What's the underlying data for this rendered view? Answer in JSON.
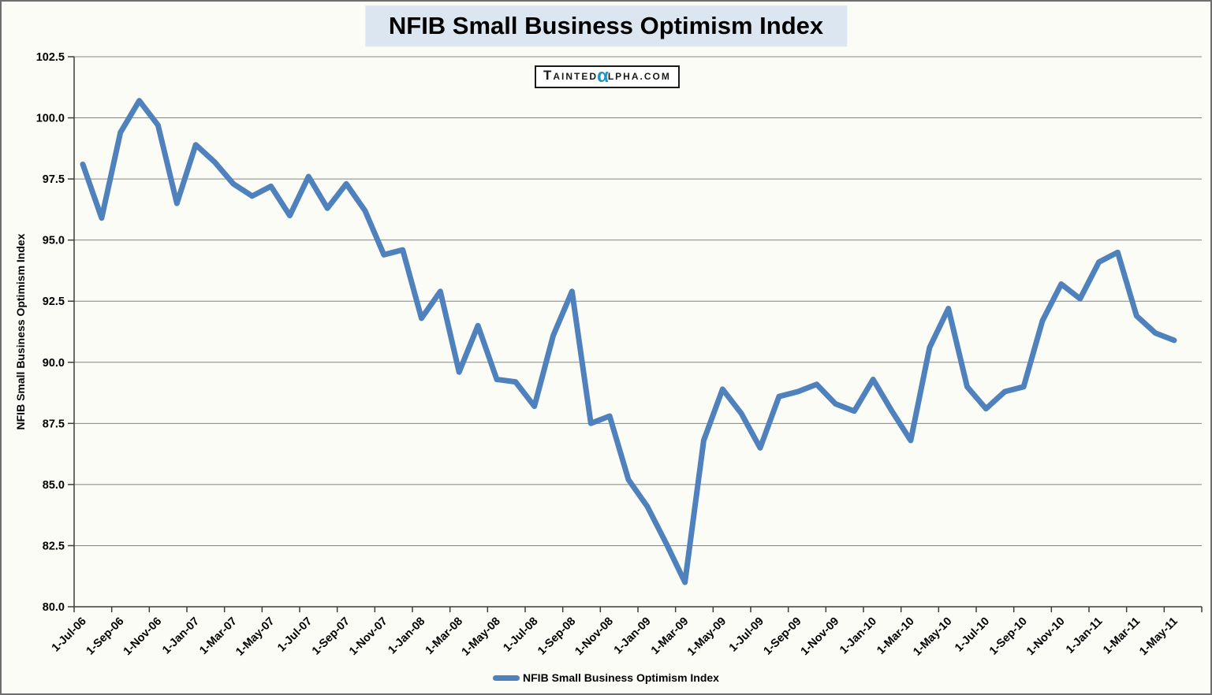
{
  "title": "NFIB Small Business Optimism Index",
  "y_axis_title": "NFIB Small Business Optimism Index",
  "watermark": {
    "t": "T",
    "ainted": "AINTED",
    "alpha": "α",
    "lpha": "LPHA.COM"
  },
  "legend": {
    "label": "NFIB Small Business Optimism Index"
  },
  "colors": {
    "line": "#4f81bd",
    "title_bg": "#dce6f1",
    "grid": "#848484",
    "axis": "#3c3c3c",
    "alpha_blue": "#1e93d1",
    "border": "#6e6e6e",
    "background": "#fcfcf7"
  },
  "chart_data": {
    "type": "line",
    "title": "NFIB Small Business Optimism Index",
    "xlabel": "",
    "ylabel": "NFIB Small Business Optimism Index",
    "ylim": [
      80.0,
      102.5
    ],
    "yticks": [
      80.0,
      82.5,
      85.0,
      87.5,
      90.0,
      92.5,
      95.0,
      97.5,
      100.0,
      102.5
    ],
    "grid": true,
    "legend_position": "bottom",
    "x": [
      "Jul-06",
      "Aug-06",
      "Sep-06",
      "Oct-06",
      "Nov-06",
      "Dec-06",
      "Jan-07",
      "Feb-07",
      "Mar-07",
      "Apr-07",
      "May-07",
      "Jun-07",
      "Jul-07",
      "Aug-07",
      "Sep-07",
      "Oct-07",
      "Nov-07",
      "Dec-07",
      "Jan-08",
      "Feb-08",
      "Mar-08",
      "Apr-08",
      "May-08",
      "Jun-08",
      "Jul-08",
      "Aug-08",
      "Sep-08",
      "Oct-08",
      "Nov-08",
      "Dec-08",
      "Jan-09",
      "Feb-09",
      "Mar-09",
      "Apr-09",
      "May-09",
      "Jun-09",
      "Jul-09",
      "Aug-09",
      "Sep-09",
      "Oct-09",
      "Nov-09",
      "Dec-09",
      "Jan-10",
      "Feb-10",
      "Mar-10",
      "Apr-10",
      "May-10",
      "Jun-10",
      "Jul-10",
      "Aug-10",
      "Sep-10",
      "Oct-10",
      "Nov-10",
      "Dec-10",
      "Jan-11",
      "Feb-11",
      "Mar-11",
      "Apr-11",
      "May-11"
    ],
    "x_tick_labels": [
      "1-Jul-06",
      "1-Sep-06",
      "1-Nov-06",
      "1-Jan-07",
      "1-Mar-07",
      "1-May-07",
      "1-Jul-07",
      "1-Sep-07",
      "1-Nov-07",
      "1-Jan-08",
      "1-Mar-08",
      "1-May-08",
      "1-Jul-08",
      "1-Sep-08",
      "1-Nov-08",
      "1-Jan-09",
      "1-Mar-09",
      "1-May-09",
      "1-Jul-09",
      "1-Sep-09",
      "1-Nov-09",
      "1-Jan-10",
      "1-Mar-10",
      "1-May-10",
      "1-Jul-10",
      "1-Sep-10",
      "1-Nov-10",
      "1-Jan-11",
      "1-Mar-11",
      "1-May-11"
    ],
    "series": [
      {
        "name": "NFIB Small Business Optimism Index",
        "values": [
          98.1,
          95.9,
          99.4,
          100.7,
          99.7,
          96.5,
          98.9,
          98.2,
          97.3,
          96.8,
          97.2,
          96.0,
          97.6,
          96.3,
          97.3,
          96.2,
          94.4,
          94.6,
          91.8,
          92.9,
          89.6,
          91.5,
          89.3,
          89.2,
          88.2,
          91.1,
          92.9,
          87.5,
          87.8,
          85.2,
          84.1,
          82.6,
          81.0,
          86.8,
          88.9,
          87.9,
          86.5,
          88.6,
          88.8,
          89.1,
          88.3,
          88.0,
          89.3,
          88.0,
          86.8,
          90.6,
          92.2,
          89.0,
          88.1,
          88.8,
          89.0,
          91.7,
          93.2,
          92.6,
          94.1,
          94.5,
          91.9,
          91.2,
          90.9
        ]
      }
    ]
  }
}
